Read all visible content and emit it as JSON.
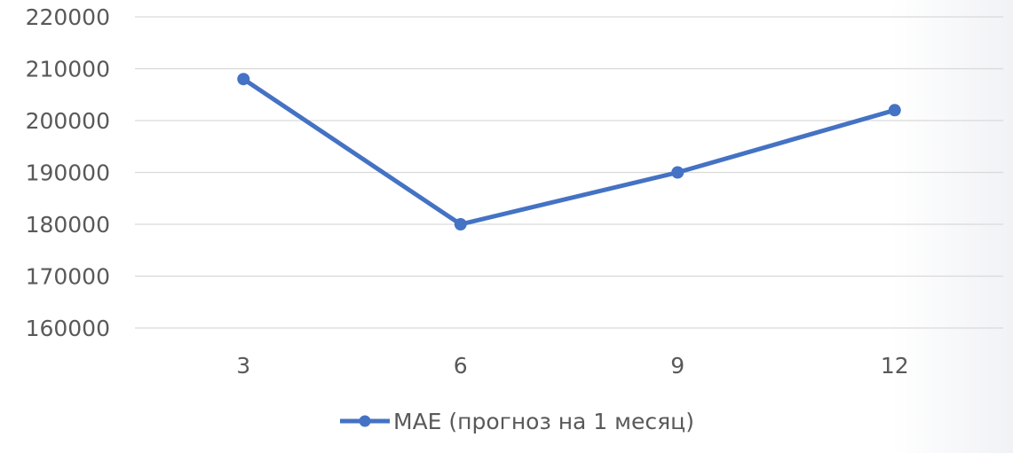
{
  "chart_data": {
    "type": "line",
    "categories": [
      "3",
      "6",
      "9",
      "12"
    ],
    "series": [
      {
        "name": "MAE (прогноз на 1 месяц)",
        "values": [
          208000,
          180000,
          190000,
          202000
        ]
      }
    ],
    "ylim": [
      160000,
      220000
    ],
    "yticks": [
      "220000",
      "210000",
      "200000",
      "190000",
      "180000",
      "170000",
      "160000"
    ],
    "grid": true,
    "legend": "bottom",
    "colors": {
      "series": "#4472c4",
      "grid": "#d9d9d9",
      "text": "#595959"
    }
  }
}
